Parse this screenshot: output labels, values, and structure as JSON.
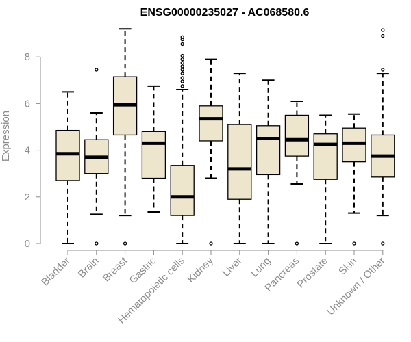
{
  "chart_data": {
    "type": "boxplot",
    "title": "ENSG00000235027 - AC068580.6",
    "xlabel": "",
    "ylabel": "Expression",
    "ylim": [
      0,
      9.2
    ],
    "yticks": [
      0,
      2,
      4,
      6,
      8
    ],
    "colors": {
      "box_fill": "#ede6cc",
      "stroke": "#000000",
      "axis": "#8c8c8c"
    },
    "categories": [
      "Bladder",
      "Brain",
      "Breast",
      "Gastric",
      "Hematopoietic cells",
      "Kidney",
      "Liver",
      "Lung",
      "Pancreas",
      "Prostate",
      "Skin",
      "Unknown / Other"
    ],
    "boxes": [
      {
        "category": "Bladder",
        "whisker_low": 0.0,
        "q1": 2.7,
        "median": 3.85,
        "q3": 4.85,
        "whisker_high": 6.5,
        "outliers": []
      },
      {
        "category": "Brain",
        "whisker_low": 1.25,
        "q1": 3.0,
        "median": 3.7,
        "q3": 4.45,
        "whisker_high": 5.6,
        "outliers": [
          0.0,
          7.45
        ]
      },
      {
        "category": "Breast",
        "whisker_low": 1.2,
        "q1": 4.65,
        "median": 5.95,
        "q3": 7.15,
        "whisker_high": 9.2,
        "outliers": [
          0.0
        ]
      },
      {
        "category": "Gastric",
        "whisker_low": 1.35,
        "q1": 2.8,
        "median": 4.3,
        "q3": 4.8,
        "whisker_high": 6.75,
        "outliers": []
      },
      {
        "category": "Hematopoietic cells",
        "whisker_low": 0.0,
        "q1": 1.2,
        "median": 2.0,
        "q3": 3.35,
        "whisker_high": 6.6,
        "outliers": [
          6.75,
          6.95,
          7.1,
          7.3,
          7.45,
          7.6,
          7.75,
          7.9,
          8.05,
          8.55,
          8.75,
          8.85
        ]
      },
      {
        "category": "Kidney",
        "whisker_low": 2.8,
        "q1": 4.4,
        "median": 5.35,
        "q3": 5.9,
        "whisker_high": 7.9,
        "outliers": [
          0.0
        ]
      },
      {
        "category": "Liver",
        "whisker_low": 0.0,
        "q1": 1.9,
        "median": 3.2,
        "q3": 5.1,
        "whisker_high": 7.3,
        "outliers": []
      },
      {
        "category": "Lung",
        "whisker_low": 0.0,
        "q1": 2.95,
        "median": 4.5,
        "q3": 5.05,
        "whisker_high": 7.0,
        "outliers": []
      },
      {
        "category": "Pancreas",
        "whisker_low": 2.55,
        "q1": 3.75,
        "median": 4.45,
        "q3": 5.5,
        "whisker_high": 6.1,
        "outliers": [
          0.0
        ]
      },
      {
        "category": "Prostate",
        "whisker_low": 0.0,
        "q1": 2.75,
        "median": 4.25,
        "q3": 4.7,
        "whisker_high": 5.5,
        "outliers": []
      },
      {
        "category": "Skin",
        "whisker_low": 1.3,
        "q1": 3.5,
        "median": 4.3,
        "q3": 4.95,
        "whisker_high": 5.55,
        "outliers": [
          0.0
        ]
      },
      {
        "category": "Unknown / Other",
        "whisker_low": 1.2,
        "q1": 2.85,
        "median": 3.75,
        "q3": 4.65,
        "whisker_high": 7.3,
        "outliers": [
          0.0,
          7.45,
          8.9,
          9.15
        ]
      }
    ]
  }
}
